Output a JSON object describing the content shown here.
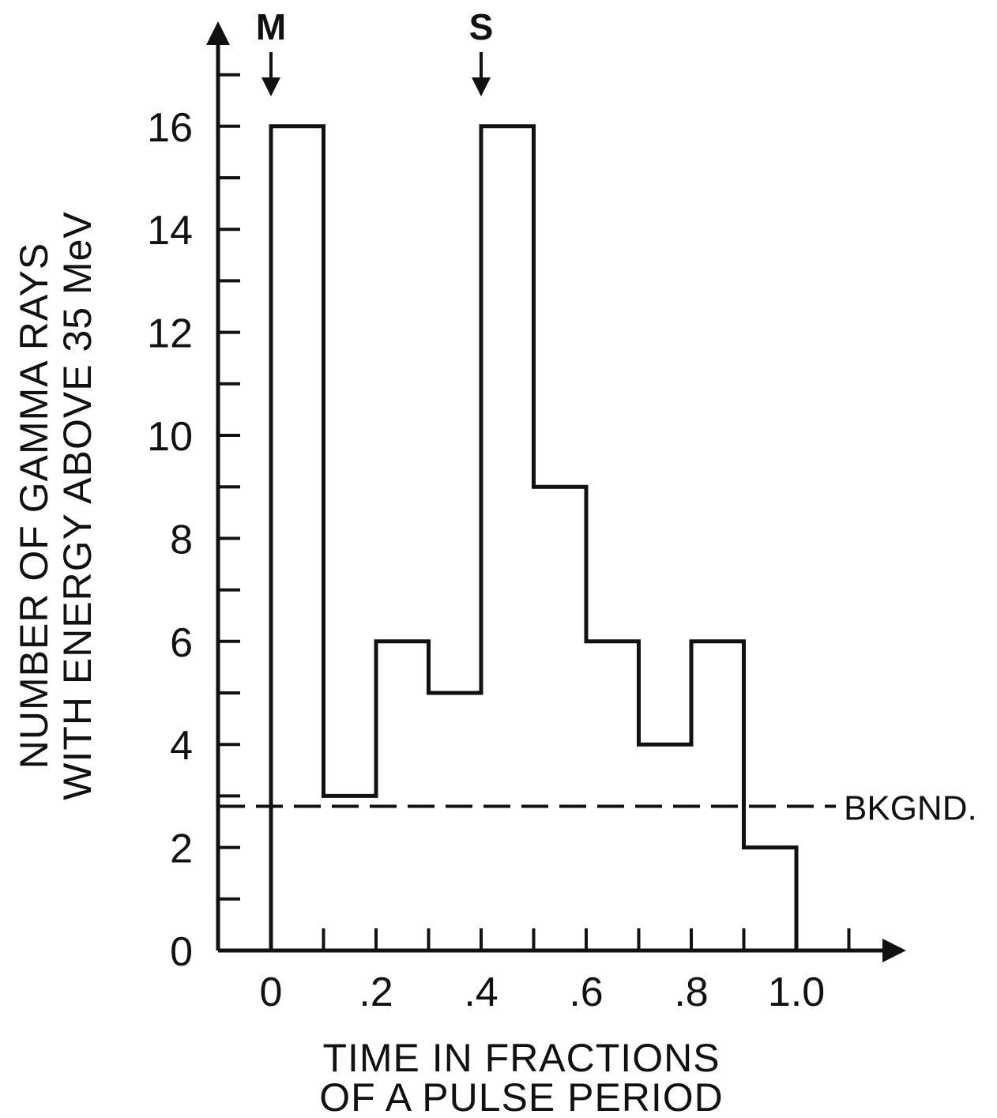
{
  "chart_data": {
    "type": "bar",
    "style": "step-histogram",
    "bin_edges": [
      0,
      0.1,
      0.2,
      0.3,
      0.4,
      0.5,
      0.6,
      0.7,
      0.8,
      0.9,
      1.0
    ],
    "values": [
      16,
      3,
      6,
      5,
      16,
      9,
      6,
      4,
      6,
      2
    ],
    "xlim": [
      -0.1,
      1.2
    ],
    "ylim": [
      0,
      17
    ],
    "x_ticks": [
      0,
      0.2,
      0.4,
      0.6,
      0.8,
      1.0
    ],
    "x_tick_labels": [
      "0",
      ".2",
      ".4",
      ".6",
      ".8",
      "1.0"
    ],
    "x_minor_ticks": [
      -0.1,
      0.1,
      0.3,
      0.5,
      0.7,
      0.9,
      1.1
    ],
    "y_ticks": [
      0,
      2,
      4,
      6,
      8,
      10,
      12,
      14,
      16
    ],
    "y_tick_labels": [
      "0",
      "2",
      "4",
      "6",
      "8",
      "10",
      "12",
      "14",
      "16"
    ],
    "y_minor_ticks": [
      1,
      3,
      5,
      7,
      9,
      11,
      13,
      15,
      17
    ],
    "xlabel": [
      "TIME IN FRACTIONS",
      "OF A PULSE PERIOD"
    ],
    "ylabel": [
      "NUMBER OF GAMMA RAYS",
      "WITH ENERGY ABOVE 35 MeV"
    ],
    "background": {
      "value": 2.8,
      "label": "BKGND."
    },
    "markers": [
      {
        "label": "M",
        "x": 0.0
      },
      {
        "label": "S",
        "x": 0.4
      }
    ],
    "grid": false,
    "line_color": "#111111"
  }
}
